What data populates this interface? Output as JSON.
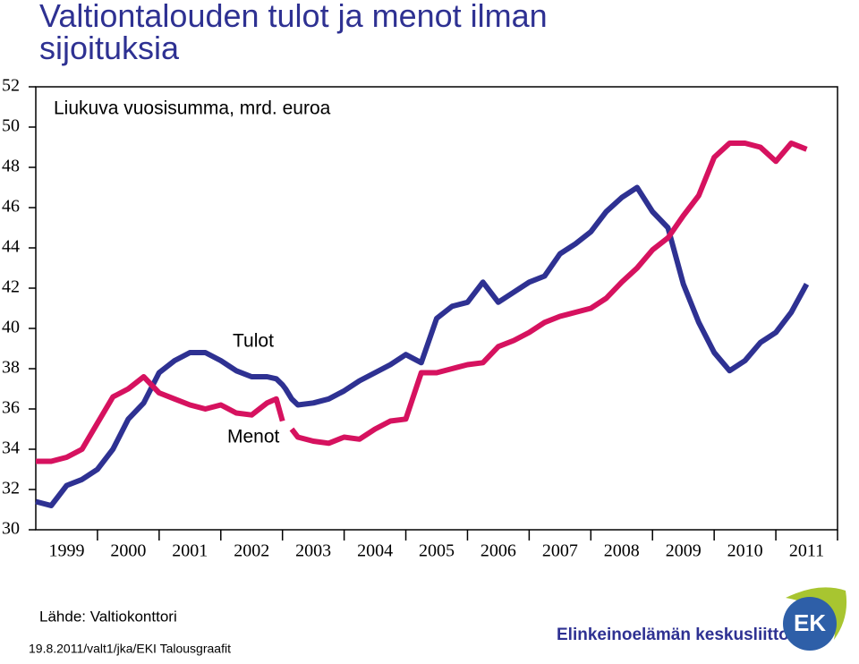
{
  "chart_data": {
    "type": "line",
    "title": "Valtiontalouden tulot ja menot ilman sijoituksia",
    "subtitle": "Liukuva vuosisumma, mrd. euroa",
    "x": [
      1999.0,
      1999.25,
      1999.5,
      1999.75,
      2000.0,
      2000.25,
      2000.5,
      2000.75,
      2001.0,
      2001.25,
      2001.5,
      2001.75,
      2002.0,
      2002.25,
      2002.5,
      2002.75,
      2002.9,
      2003.0,
      2003.05,
      2003.15,
      2003.25,
      2003.5,
      2003.75,
      2004.0,
      2004.25,
      2004.5,
      2004.75,
      2005.0,
      2005.25,
      2005.5,
      2005.75,
      2006.0,
      2006.25,
      2006.5,
      2006.75,
      2007.0,
      2007.25,
      2007.5,
      2007.75,
      2008.0,
      2008.25,
      2008.5,
      2008.75,
      2009.0,
      2009.25,
      2009.5,
      2009.75,
      2010.0,
      2010.25,
      2010.5,
      2010.75,
      2011.0,
      2011.25,
      2011.5
    ],
    "series": [
      {
        "name": "Tulot",
        "color": "#2e3192",
        "values": [
          31.4,
          31.2,
          32.2,
          32.5,
          33.0,
          34.0,
          35.5,
          36.3,
          37.8,
          38.4,
          38.8,
          38.8,
          38.4,
          37.9,
          37.6,
          37.6,
          37.5,
          37.2,
          37.0,
          36.5,
          36.2,
          36.3,
          36.5,
          36.9,
          37.4,
          37.8,
          38.2,
          38.7,
          38.3,
          40.5,
          41.1,
          41.3,
          42.3,
          41.3,
          41.8,
          42.3,
          42.6,
          43.7,
          44.2,
          44.8,
          45.8,
          46.5,
          47.0,
          45.8,
          45.0,
          42.2,
          40.3,
          38.8,
          37.9,
          38.4,
          39.3,
          39.8,
          40.8,
          42.2
        ]
      },
      {
        "name": "Menot",
        "color": "#d6125f",
        "values": [
          33.4,
          33.4,
          33.6,
          34.0,
          35.3,
          36.6,
          37.0,
          37.6,
          36.8,
          36.5,
          36.2,
          36.0,
          36.2,
          35.8,
          35.7,
          36.3,
          36.5,
          35.4,
          null,
          35.0,
          34.6,
          34.4,
          34.3,
          34.6,
          34.5,
          35.0,
          35.4,
          35.5,
          37.8,
          37.8,
          38.0,
          38.2,
          38.3,
          39.1,
          39.4,
          39.8,
          40.3,
          40.6,
          40.8,
          41.0,
          41.5,
          42.3,
          43.0,
          43.9,
          44.5,
          45.6,
          46.6,
          48.5,
          49.2,
          49.2,
          49.0,
          48.3,
          49.2,
          48.9
        ]
      }
    ],
    "xlim": [
      1999,
      2012
    ],
    "xticks": [
      {
        "value": 1999.5,
        "label": "1999"
      },
      {
        "value": 2000.5,
        "label": "2000"
      },
      {
        "value": 2001.5,
        "label": "2001"
      },
      {
        "value": 2002.5,
        "label": "2002"
      },
      {
        "value": 2003.5,
        "label": "2003"
      },
      {
        "value": 2004.5,
        "label": "2004"
      },
      {
        "value": 2005.5,
        "label": "2005"
      },
      {
        "value": 2006.5,
        "label": "2006"
      },
      {
        "value": 2007.5,
        "label": "2007"
      },
      {
        "value": 2008.5,
        "label": "2008"
      },
      {
        "value": 2009.5,
        "label": "2009"
      },
      {
        "value": 2010.5,
        "label": "2010"
      },
      {
        "value": 2011.5,
        "label": "2011"
      }
    ],
    "ylim": [
      30,
      52
    ],
    "yticks": [
      30,
      32,
      34,
      36,
      38,
      40,
      42,
      44,
      46,
      48,
      50,
      52
    ],
    "grid": false,
    "source": "Lähde: Valtiokonttori",
    "footer": "19.8.2011/valt1/jka/EKI Talousgraafit",
    "organization": "Elinkeinoelämän keskusliitto",
    "logo": "EK"
  }
}
